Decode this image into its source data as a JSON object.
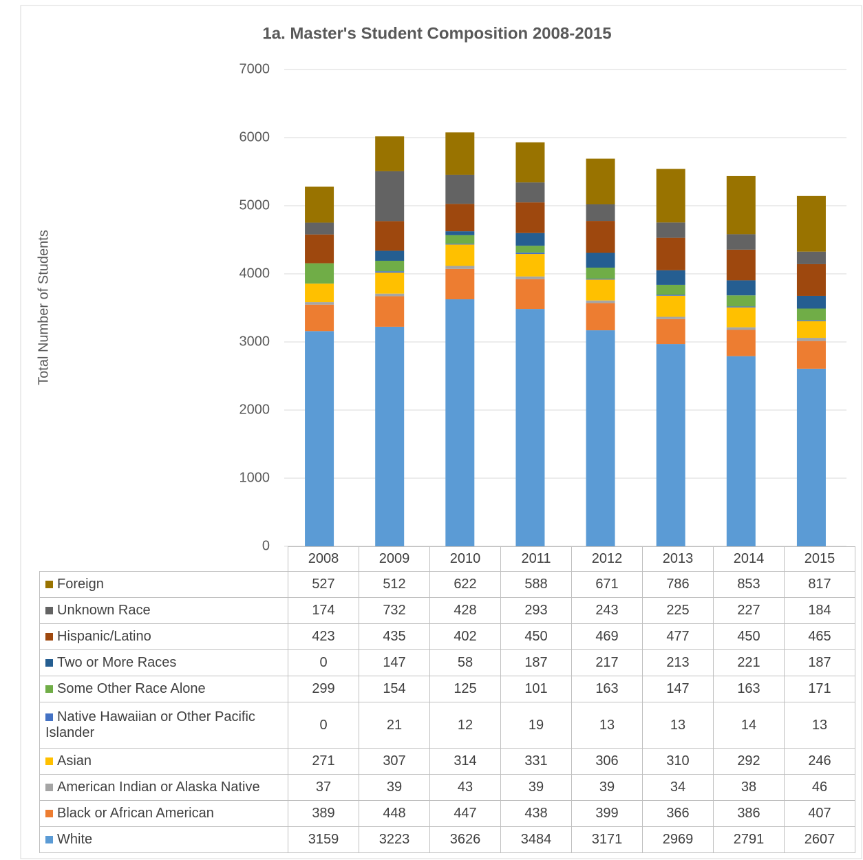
{
  "chart_data": {
    "type": "bar",
    "stacked": true,
    "title": "1a. Master's Student Composition 2008-2015",
    "ylabel": "Total Number of Students",
    "categories": [
      "2008",
      "2009",
      "2010",
      "2011",
      "2012",
      "2013",
      "2014",
      "2015"
    ],
    "ylim": [
      0,
      7000
    ],
    "yticks": [
      0,
      1000,
      2000,
      3000,
      4000,
      5000,
      6000,
      7000
    ],
    "grid": true,
    "series": [
      {
        "name": "Foreign",
        "color": "#997300",
        "values": [
          527,
          512,
          622,
          588,
          671,
          786,
          853,
          817
        ]
      },
      {
        "name": "Unknown Race",
        "color": "#636363",
        "values": [
          174,
          732,
          428,
          293,
          243,
          225,
          227,
          184
        ]
      },
      {
        "name": "Hispanic/Latino",
        "color": "#9e480e",
        "values": [
          423,
          435,
          402,
          450,
          469,
          477,
          450,
          465
        ]
      },
      {
        "name": "Two or More Races",
        "color": "#255e91",
        "values": [
          0,
          147,
          58,
          187,
          217,
          213,
          221,
          187
        ]
      },
      {
        "name": "Some Other Race Alone",
        "color": "#70ad47",
        "values": [
          299,
          154,
          125,
          101,
          163,
          147,
          163,
          171
        ]
      },
      {
        "name": "Native Hawaiian or Other Pacific Islander",
        "color": "#4472c4",
        "values": [
          0,
          21,
          12,
          19,
          13,
          13,
          14,
          13
        ]
      },
      {
        "name": "Asian",
        "color": "#ffc000",
        "values": [
          271,
          307,
          314,
          331,
          306,
          310,
          292,
          246
        ]
      },
      {
        "name": "American Indian or Alaska Native",
        "color": "#a5a5a5",
        "values": [
          37,
          39,
          43,
          39,
          39,
          34,
          38,
          46
        ]
      },
      {
        "name": "Black or African American",
        "color": "#ed7d31",
        "values": [
          389,
          448,
          447,
          438,
          399,
          366,
          386,
          407
        ]
      },
      {
        "name": "White",
        "color": "#5b9bd5",
        "values": [
          3159,
          3223,
          3626,
          3484,
          3171,
          2969,
          2791,
          2607
        ]
      }
    ]
  }
}
